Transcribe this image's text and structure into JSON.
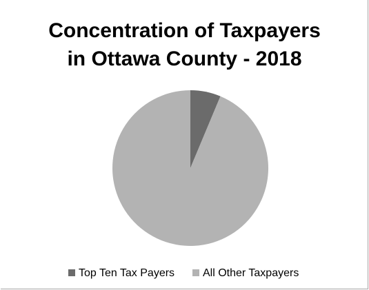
{
  "chart_data": {
    "type": "pie",
    "title_lines": [
      "Concentration of Taxpayers",
      "in Ottawa County - 2018"
    ],
    "categories": [
      "Top Ten Tax Payers",
      "All Other Taxpayers"
    ],
    "values": [
      6.3,
      93.7
    ],
    "unit": "percent share (estimated)",
    "colors": [
      "#6b6b6b",
      "#b3b3b3"
    ],
    "start_angle_deg": 0,
    "direction": "clockwise",
    "legend_position": "bottom"
  }
}
